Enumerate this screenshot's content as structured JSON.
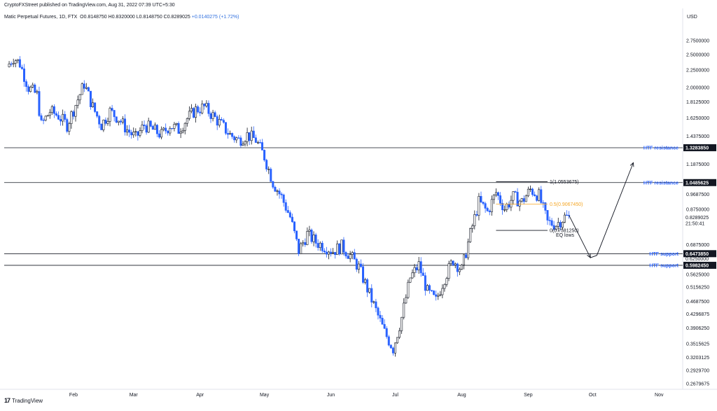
{
  "header": {
    "publisher": "CryptoFXStreet published on TradingView.com, Aug 31, 2022 07:39 UTC+5:30"
  },
  "symbol": {
    "name": "Matic Perpetual Futures, 1D, FTX",
    "ohlc": "O0.8148750  H0.8320000  L0.8148750  C0.8289025",
    "change": "+0.0140275 (+1.72%)"
  },
  "footer": {
    "logo": "TradingView"
  },
  "colors": {
    "up": "#131722",
    "down": "#2962ff",
    "orange": "#f5a623",
    "label_blue": "#2962ff",
    "line": "#131722"
  },
  "chart_data": {
    "type": "candlestick",
    "currency": "USD",
    "scale": "log",
    "ylim": [
      0.2679675,
      3.05
    ],
    "y_ticks": [
      "2.7500000",
      "2.5000000",
      "2.2500000",
      "2.0000000",
      "1.8125000",
      "1.6250000",
      "1.4375000",
      "1.1875000",
      "0.9687500",
      "0.8750000",
      "0.6875000",
      "0.5625000",
      "0.5156250",
      "0.4687500",
      "0.4296875",
      "0.3906250",
      "0.3515625",
      "0.3203125",
      "0.2929700",
      "0.2679675"
    ],
    "x_ticks": [
      "Feb",
      "Mar",
      "Apr",
      "May",
      "Jun",
      "Jul",
      "Aug",
      "Sep",
      "Oct",
      "Nov"
    ],
    "price_path": [
      [
        0,
        2.3
      ],
      [
        3,
        2.45
      ],
      [
        6,
        2.35
      ],
      [
        10,
        2.0
      ],
      [
        14,
        1.9
      ],
      [
        16,
        1.55
      ],
      [
        20,
        1.7
      ],
      [
        24,
        1.65
      ],
      [
        28,
        1.55
      ],
      [
        32,
        1.78
      ],
      [
        36,
        2.05
      ],
      [
        40,
        1.75
      ],
      [
        44,
        1.55
      ],
      [
        48,
        1.7
      ],
      [
        52,
        1.62
      ],
      [
        56,
        1.5
      ],
      [
        60,
        1.42
      ],
      [
        64,
        1.55
      ],
      [
        68,
        1.5
      ],
      [
        72,
        1.45
      ],
      [
        76,
        1.55
      ],
      [
        80,
        1.5
      ],
      [
        84,
        1.62
      ],
      [
        88,
        1.72
      ],
      [
        92,
        1.75
      ],
      [
        96,
        1.65
      ],
      [
        100,
        1.55
      ],
      [
        104,
        1.45
      ],
      [
        108,
        1.4
      ],
      [
        112,
        1.45
      ],
      [
        116,
        1.4
      ],
      [
        120,
        1.25
      ],
      [
        124,
        1.05
      ],
      [
        128,
        0.95
      ],
      [
        132,
        0.83
      ],
      [
        136,
        0.66
      ],
      [
        140,
        0.74
      ],
      [
        144,
        0.7
      ],
      [
        148,
        0.68
      ],
      [
        152,
        0.66
      ],
      [
        156,
        0.68
      ],
      [
        160,
        0.64
      ],
      [
        164,
        0.59
      ],
      [
        168,
        0.51
      ],
      [
        172,
        0.44
      ],
      [
        176,
        0.38
      ],
      [
        180,
        0.34
      ],
      [
        184,
        0.42
      ],
      [
        188,
        0.55
      ],
      [
        192,
        0.6
      ],
      [
        196,
        0.5
      ],
      [
        200,
        0.47
      ],
      [
        204,
        0.55
      ],
      [
        208,
        0.62
      ],
      [
        212,
        0.58
      ],
      [
        216,
        0.74
      ],
      [
        220,
        0.92
      ],
      [
        224,
        0.86
      ],
      [
        228,
        0.98
      ],
      [
        232,
        0.88
      ],
      [
        236,
        0.95
      ],
      [
        240,
        0.92
      ],
      [
        244,
        1.0
      ],
      [
        248,
        0.96
      ],
      [
        252,
        0.8
      ],
      [
        256,
        0.79
      ],
      [
        260,
        0.83
      ],
      [
        262,
        0.8289
      ]
    ],
    "horizontal_levels": [
      {
        "price": 1.328385,
        "label": "HTF resistance",
        "value": "1.3283850"
      },
      {
        "price": 1.0485625,
        "label": "HTF resistance",
        "value": "1.0485625"
      },
      {
        "price": 0.647385,
        "label": "HTF support",
        "value": "0.6473850"
      },
      {
        "price": 0.598245,
        "label": "HTF support",
        "value": "0.5982450"
      }
    ],
    "fib_levels": [
      {
        "price": 1.0553675,
        "label": "1(1.0553675)",
        "color": "#131722"
      },
      {
        "price": 0.906745,
        "label": "0.5(0.9067450)",
        "color": "#f5a623"
      },
      {
        "price": 0.758125,
        "label": "0(0.7581250)",
        "color": "#131722"
      }
    ],
    "annotation": "EQ lows",
    "last_price": {
      "value": "0.8289025",
      "countdown": "21:50:41"
    },
    "projection": [
      [
        262,
        0.84
      ],
      [
        272,
        0.63
      ],
      [
        275,
        0.64
      ],
      [
        292,
        1.2
      ]
    ],
    "hidden_label": "0.6250000"
  }
}
